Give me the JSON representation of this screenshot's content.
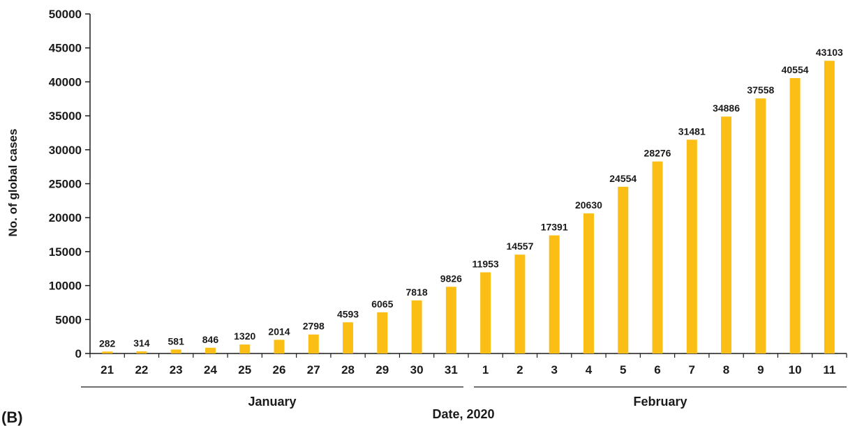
{
  "panel_label": "(B)",
  "chart_data": {
    "type": "bar",
    "title": "",
    "xlabel": "Date, 2020",
    "ylabel": "No. of global cases",
    "ylim": [
      0,
      50000
    ],
    "yticks": [
      "0",
      "5000",
      "10000",
      "15000",
      "20000",
      "25000",
      "30000",
      "35000",
      "40000",
      "45000",
      "50000"
    ],
    "categories": [
      "21",
      "22",
      "23",
      "24",
      "25",
      "26",
      "27",
      "28",
      "29",
      "30",
      "31",
      "1",
      "2",
      "3",
      "4",
      "5",
      "6",
      "7",
      "8",
      "9",
      "10",
      "11"
    ],
    "values": [
      282,
      314,
      581,
      846,
      1320,
      2014,
      2798,
      4593,
      6065,
      7818,
      9826,
      11953,
      14557,
      17391,
      20630,
      24554,
      28276,
      31481,
      34886,
      37558,
      40554,
      43103
    ],
    "data_labels": [
      "282",
      "314",
      "581",
      "846",
      "1320",
      "2014",
      "2798",
      "4593",
      "6065",
      "7818",
      "9826",
      "11953",
      "14557",
      "17391",
      "20630",
      "24554",
      "28276",
      "31481",
      "34886",
      "37558",
      "40554",
      "43103"
    ],
    "month_groups": [
      {
        "label": "January",
        "count": 11
      },
      {
        "label": "February",
        "count": 11
      }
    ],
    "bar_color": "#FBBE14",
    "grid": false,
    "legend": "none"
  }
}
